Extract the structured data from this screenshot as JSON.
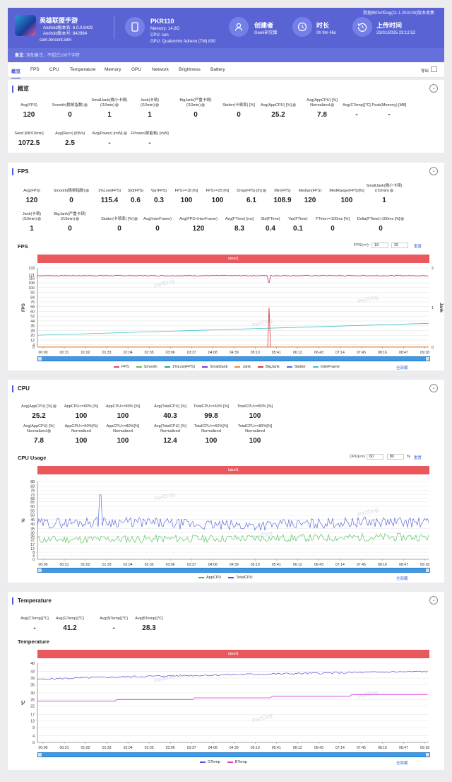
{
  "header": {
    "app_name": "英雄联盟手游",
    "android_version": "Android版本名: 6.0.0.8429",
    "android_code": "Android版本号: 842984",
    "package": "com.tencent.lolm",
    "device": "PKR110",
    "memory": "Memory: 14.8G",
    "cpu": "CPU: sun",
    "gpu": "GPU: Qualcomm Adreno (TM) 830",
    "creator_title": "创建者",
    "creator_value": "Geek研究僧",
    "duration_title": "时长",
    "duration_value": "0h 9m 46s",
    "upload_title": "上传时间",
    "upload_value": "31/01/2025 23:12:52",
    "source": "数据由PerfDog(11.1.250108)版本收集",
    "note_label": "备注:",
    "note_placeholder": "添加备注，不超过100个字符"
  },
  "nav": {
    "tabs": [
      "概览",
      "FPS",
      "CPU",
      "Temperature",
      "Memory",
      "GPU",
      "Network",
      "Brightness",
      "Battery"
    ],
    "export": "导出"
  },
  "overview": {
    "title": "概览",
    "metrics": [
      {
        "label": "Avg(FPS)",
        "value": "120"
      },
      {
        "label": "Smooth(稳帧指数)",
        "value": "0",
        "q": true
      },
      {
        "label": "SmallJank(微小卡顿)\n(/10min)",
        "value": "1",
        "q": true
      },
      {
        "label": "Jank(卡顿)\n(/10min)",
        "value": "1",
        "q": true
      },
      {
        "label": "BigJank(严重卡顿)\n(/10min)",
        "value": "0",
        "q": true
      },
      {
        "label": "Stutter(卡顿率) [%]",
        "value": "0"
      },
      {
        "label": "Avg(AppCPU) [%]",
        "value": "25.2",
        "q": true
      },
      {
        "label": "Avg(AppCPU) [%]\nNormalized",
        "value": "7.8",
        "q": true
      },
      {
        "label": "Avg(CTemp)[℃]",
        "value": "-"
      },
      {
        "label": "Peak(Memory) [MB]",
        "value": "-"
      },
      {
        "label": "Send [KB/10min]",
        "value": "1072.5"
      },
      {
        "label": "Avg(Recv) [KB/s]",
        "value": "2.5"
      },
      {
        "label": "Avg(Power) [mW]",
        "value": "-",
        "q": true
      },
      {
        "label": "FPower(帧能耗) [mW]",
        "value": "-"
      }
    ]
  },
  "fps_section": {
    "title": "FPS",
    "metrics": [
      {
        "label": "Avg(FPS)",
        "value": "120"
      },
      {
        "label": "Smooth(稳帧指数)",
        "value": "0",
        "q": true
      },
      {
        "label": "1%Low(FPS)",
        "value": "115.4"
      },
      {
        "label": "Std(FPS)",
        "value": "0.6"
      },
      {
        "label": "Var(FPS)",
        "value": "0.3"
      },
      {
        "label": "FPS>=18 [%]",
        "value": "100"
      },
      {
        "label": "FPS>=25 [%]",
        "value": "100"
      },
      {
        "label": "Drop(FPS) [/h]",
        "value": "6.1",
        "q": true
      },
      {
        "label": "Min(FPS)",
        "value": "108.9"
      },
      {
        "label": "Median(FPS)",
        "value": "120"
      },
      {
        "label": "MedRange(FPS)[%]",
        "value": "100"
      },
      {
        "label": "SmallJank(微小卡顿)\n(/10min)",
        "value": "1",
        "q": true
      },
      {
        "label": "Jank(卡顿)\n(/10min)",
        "value": "1",
        "q": true
      },
      {
        "label": "BigJank(严重卡顿)\n(/10min)",
        "value": "0",
        "q": true
      },
      {
        "label": "Stutter(卡顿率) [%]",
        "value": "0",
        "q": true
      },
      {
        "label": "Avg(InterFrame)",
        "value": "0"
      },
      {
        "label": "Avg(FPS+InterFrame)",
        "value": "120"
      },
      {
        "label": "Avg(FTime) [ms]",
        "value": "8.3"
      },
      {
        "label": "Std(FTime)",
        "value": "0.4"
      },
      {
        "label": "Var(FTime)",
        "value": "0.1"
      },
      {
        "label": "FTime>=100ms [%]",
        "value": "0"
      },
      {
        "label": "Delta(FTime)>100ms [/h]",
        "value": "0",
        "q": true
      }
    ],
    "chart_title": "FPS",
    "threshold_label": "FPS(>=)",
    "threshold_values": [
      "18",
      "25"
    ],
    "reset": "重置",
    "label_bar": "label1",
    "show_all": "全部藏"
  },
  "cpu_section": {
    "title": "CPU",
    "metrics": [
      {
        "label": "Avg(AppCPU) [%]",
        "value": "25.2",
        "q": true
      },
      {
        "label": "AppCPU<=60% [%]",
        "value": "100"
      },
      {
        "label": "AppCPU<=80% [%]",
        "value": "100"
      },
      {
        "label": "Avg(TotalCPU) [%]",
        "value": "40.3"
      },
      {
        "label": "TotalCPU<=60% [%]",
        "value": "99.8"
      },
      {
        "label": "TotalCPU<=80% [%]",
        "value": "100"
      },
      {
        "label": "Avg(AppCPU) [%]\nNormalized",
        "value": "7.8",
        "q": true
      },
      {
        "label": "AppCPU<=60%[%]\nNormalized",
        "value": "100"
      },
      {
        "label": "AppCPU<=80%[%]\nNormalized",
        "value": "100"
      },
      {
        "label": "Avg(TotalCPU) [%]\nNormalized",
        "value": "12.4"
      },
      {
        "label": "TotalCPU<=60%[%]\nNormalized",
        "value": "100"
      },
      {
        "label": "TotalCPU<=80%[%]\nNormalized",
        "value": "100"
      }
    ],
    "chart_title": "CPU Usage",
    "threshold_label": "CPU(<=)",
    "threshold_values": [
      "60",
      "80"
    ],
    "unit": "%",
    "reset": "重置",
    "label_bar": "label1",
    "show_all": "全部藏"
  },
  "temp_section": {
    "title": "Temperature",
    "metrics": [
      {
        "label": "Avg(CTemp)[℃]",
        "value": "-"
      },
      {
        "label": "Avg(GTemp)[℃]",
        "value": "41.2"
      },
      {
        "label": "Avg(NTemp)[℃]",
        "value": "-"
      },
      {
        "label": "Avg(BTemp)[℃]",
        "value": "28.3"
      }
    ],
    "chart_title": "Temperature",
    "label_bar": "label1",
    "show_all": "全部藏"
  },
  "watermark": "PerfDog",
  "chart_data": [
    {
      "type": "line",
      "title": "FPS",
      "ylabel": "FPS",
      "y2label": "Jank",
      "ylim": [
        0,
        133
      ],
      "y2lim": [
        0,
        2
      ],
      "yticks": [
        0,
        4,
        12,
        20,
        28,
        36,
        44,
        52,
        60,
        68,
        76,
        84,
        92,
        100,
        108,
        116,
        121,
        133
      ],
      "y2ticks": [
        0,
        1,
        2
      ],
      "x": [
        "00:00",
        "00:31",
        "01:02",
        "01:33",
        "02:04",
        "02:35",
        "03:06",
        "03:37",
        "04:08",
        "04:39",
        "05:10",
        "05:41",
        "06:12",
        "06:43",
        "07:14",
        "07:45",
        "08:16",
        "08:47",
        "09:18"
      ],
      "legend": [
        "FPS",
        "Smooth",
        "1%Low(FPS)",
        "SmallJank",
        "Jank",
        "BigJank",
        "Stutter",
        "InterFrame"
      ],
      "colors": [
        "#e2447a",
        "#6abf4b",
        "#21a884",
        "#7a3bc9",
        "#ef8c3c",
        "#d9363b",
        "#4f6de0",
        "#3fc4c7"
      ],
      "series": [
        {
          "name": "FPS",
          "level": 120,
          "dips": [
            {
              "t": "05:41",
              "value": 109
            }
          ]
        },
        {
          "name": "Jank",
          "events": [
            {
              "t": "05:41",
              "value": 1
            }
          ]
        },
        {
          "name": "InterFrame",
          "from": 20,
          "to": 40
        }
      ]
    },
    {
      "type": "line",
      "title": "CPU Usage",
      "ylabel": "%",
      "ylim": [
        0,
        88
      ],
      "yticks": [
        0,
        4,
        8,
        12,
        17,
        22,
        26,
        30,
        35,
        40,
        45,
        50,
        55,
        60,
        65,
        69,
        73,
        78,
        83,
        88
      ],
      "x": [
        "00:00",
        "00:31",
        "01:02",
        "01:33",
        "02:04",
        "02:35",
        "03:06",
        "03:37",
        "04:08",
        "04:39",
        "05:10",
        "05:41",
        "06:12",
        "06:43",
        "07:14",
        "07:45",
        "08:16",
        "08:47",
        "09:18"
      ],
      "legend": [
        "AppCPU",
        "TotalCPU"
      ],
      "colors": [
        "#3fbf4e",
        "#4a56d4"
      ],
      "series": [
        {
          "name": "AppCPU",
          "mean": 25.2
        },
        {
          "name": "TotalCPU",
          "mean": 40.3,
          "peak": {
            "t": "01:33",
            "value": 73
          }
        }
      ]
    },
    {
      "type": "line",
      "title": "Temperature",
      "ylabel": "℃",
      "ylim": [
        0,
        48
      ],
      "yticks": [
        0,
        4,
        9,
        13,
        17,
        22,
        26,
        30,
        35,
        39,
        43,
        48
      ],
      "x": [
        "00:00",
        "00:31",
        "01:02",
        "01:33",
        "02:04",
        "02:35",
        "03:06",
        "03:37",
        "04:08",
        "04:39",
        "05:10",
        "05:41",
        "06:12",
        "06:43",
        "07:14",
        "07:45",
        "08:16",
        "08:47",
        "09:18"
      ],
      "legend": [
        "GTemp",
        "BTemp"
      ],
      "colors": [
        "#5f4fd0",
        "#d63bd4"
      ],
      "series": [
        {
          "name": "GTemp",
          "start": 38,
          "end": 43
        },
        {
          "name": "BTemp",
          "start": 25,
          "end": 30
        }
      ]
    }
  ]
}
